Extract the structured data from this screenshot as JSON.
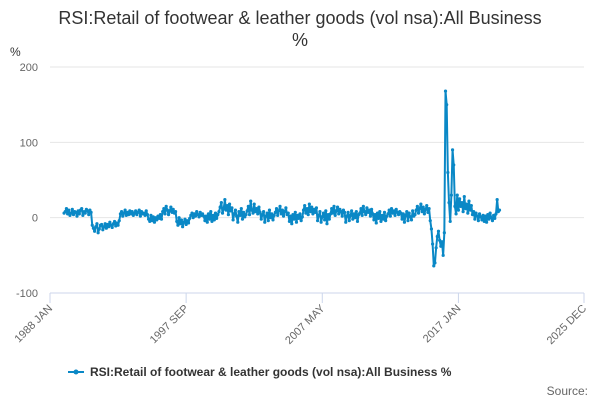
{
  "colors": {
    "series": "#0a88c6",
    "grid": "#e6e6e6",
    "axis": "#ccd6eb",
    "text": "#333333",
    "muted": "#666666"
  },
  "chart_data": {
    "type": "line",
    "title": "RSI:Retail of footwear & leather goods (vol nsa):All Business",
    "subtitle": "%",
    "ylabel": "%",
    "xlabel": "",
    "ylim": [
      -100,
      200
    ],
    "yticks": [
      -100,
      0,
      100,
      200
    ],
    "xlim": [
      "1988 JAN",
      "2025 DEC"
    ],
    "xticks": [
      "1988 JAN",
      "1997 SEP",
      "2007 MAY",
      "2017 JAN",
      "2025 DEC"
    ],
    "grid": true,
    "legend_position": "bottom-center",
    "credit": "Source:",
    "series": [
      {
        "name": "RSI:Retail of footwear & leather goods (vol nsa):All Business %",
        "x_start": "1989 JAN",
        "frequency": "monthly",
        "values": [
          6,
          8,
          12,
          5,
          10,
          3,
          6,
          11,
          4,
          8,
          7,
          2,
          9,
          5,
          10,
          12,
          3,
          8,
          6,
          11,
          9,
          4,
          10,
          7,
          -10,
          -14,
          -18,
          -12,
          -8,
          -20,
          -15,
          -10,
          -9,
          -16,
          -12,
          -8,
          -14,
          -9,
          -12,
          -6,
          -10,
          -13,
          -8,
          -5,
          -11,
          -7,
          -10,
          -4,
          5,
          8,
          2,
          6,
          10,
          3,
          7,
          4,
          9,
          5,
          8,
          3,
          6,
          9,
          4,
          7,
          10,
          2,
          8,
          5,
          6,
          3,
          9,
          4,
          -2,
          -5,
          3,
          -4,
          1,
          -6,
          0,
          -3,
          2,
          -1,
          4,
          -2,
          8,
          12,
          5,
          15,
          10,
          4,
          9,
          14,
          7,
          11,
          6,
          8,
          -5,
          -10,
          0,
          -8,
          -3,
          -12,
          -6,
          -2,
          -9,
          -4,
          -7,
          -1,
          3,
          6,
          0,
          5,
          2,
          8,
          4,
          1,
          7,
          3,
          5,
          2,
          -4,
          2,
          -6,
          5,
          -2,
          8,
          -5,
          3,
          -3,
          6,
          -1,
          4,
          8,
          14,
          20,
          6,
          12,
          24,
          10,
          16,
          4,
          18,
          9,
          13,
          -3,
          5,
          10,
          2,
          -6,
          8,
          3,
          12,
          -2,
          7,
          1,
          4,
          9,
          15,
          4,
          22,
          10,
          6,
          18,
          8,
          12,
          5,
          14,
          7,
          -2,
          4,
          8,
          -6,
          2,
          6,
          -4,
          10,
          0,
          5,
          -3,
          3,
          7,
          12,
          3,
          9,
          15,
          5,
          10,
          2,
          8,
          13,
          4,
          6,
          -5,
          2,
          -8,
          4,
          -2,
          7,
          -6,
          3,
          -1,
          5,
          -4,
          1,
          10,
          16,
          6,
          12,
          4,
          18,
          8,
          14,
          5,
          11,
          7,
          13,
          -4,
          3,
          8,
          -6,
          1,
          6,
          -3,
          9,
          -8,
          4,
          -2,
          5,
          12,
          6,
          15,
          3,
          9,
          14,
          5,
          11,
          8,
          2,
          10,
          7,
          -6,
          2,
          7,
          -4,
          3,
          9,
          -2,
          5,
          0,
          8,
          -5,
          4,
          6,
          12,
          3,
          15,
          8,
          4,
          13,
          7,
          10,
          2,
          11,
          5,
          -3,
          4,
          -7,
          6,
          -1,
          8,
          -5,
          3,
          -2,
          7,
          -4,
          2,
          5,
          10,
          2,
          12,
          6,
          9,
          3,
          11,
          7,
          4,
          8,
          6,
          -2,
          5,
          -6,
          3,
          8,
          -4,
          6,
          1,
          -3,
          9,
          2,
          4,
          10,
          15,
          6,
          12,
          18,
          8,
          14,
          5,
          11,
          16,
          7,
          12,
          -4,
          -15,
          -35,
          -64,
          -60,
          -40,
          -25,
          -18,
          -30,
          -38,
          -32,
          -50,
          -20,
          168,
          150,
          60,
          20,
          -5,
          30,
          90,
          70,
          15,
          5,
          30,
          10,
          25,
          15,
          20,
          8,
          28,
          12,
          18,
          6,
          22,
          10,
          16,
          4,
          8,
          -2,
          6,
          2,
          -4,
          5,
          1,
          -3,
          3,
          -5,
          2,
          -6,
          4,
          -2,
          6,
          0,
          -4,
          3,
          -1,
          5,
          24,
          8,
          10
        ]
      }
    ]
  }
}
